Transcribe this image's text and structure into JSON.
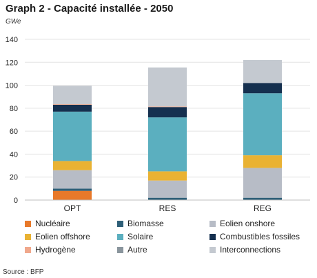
{
  "header": {
    "title": "Graph 2 - Capacité installée - 2050",
    "unit": "GWe"
  },
  "footer": {
    "source": "Source : BFP"
  },
  "chart_data": {
    "type": "bar",
    "stacked": true,
    "categories": [
      "OPT",
      "RES",
      "REG"
    ],
    "y_ticks": [
      "0",
      "20",
      "40",
      "60",
      "80",
      "100",
      "120",
      "140"
    ],
    "ylim": [
      0,
      140
    ],
    "grid": true,
    "legend_position": "bottom",
    "series": [
      {
        "name": "Nucléaire",
        "color": "#E8792A",
        "values": [
          8,
          0,
          0
        ]
      },
      {
        "name": "Biomasse",
        "color": "#2E5F78",
        "values": [
          2,
          2,
          2
        ]
      },
      {
        "name": "Eolien onshore",
        "color": "#B7BCC6",
        "values": [
          16,
          15,
          26
        ]
      },
      {
        "name": "Eolien offshore",
        "color": "#E9B233",
        "values": [
          8,
          8,
          11
        ]
      },
      {
        "name": "Solaire",
        "color": "#5BAFBF",
        "values": [
          43,
          47,
          54
        ]
      },
      {
        "name": "Combustibles fossiles",
        "color": "#15304F",
        "values": [
          6,
          9,
          9
        ]
      },
      {
        "name": "Hydrogène",
        "color": "#F0A88C",
        "values": [
          0.5,
          0.5,
          0
        ]
      },
      {
        "name": "Autre",
        "color": "#8A959D",
        "values": [
          0,
          0,
          0
        ]
      },
      {
        "name": "Interconnections",
        "color": "#C4C9D0",
        "values": [
          16,
          34,
          20
        ]
      }
    ]
  }
}
